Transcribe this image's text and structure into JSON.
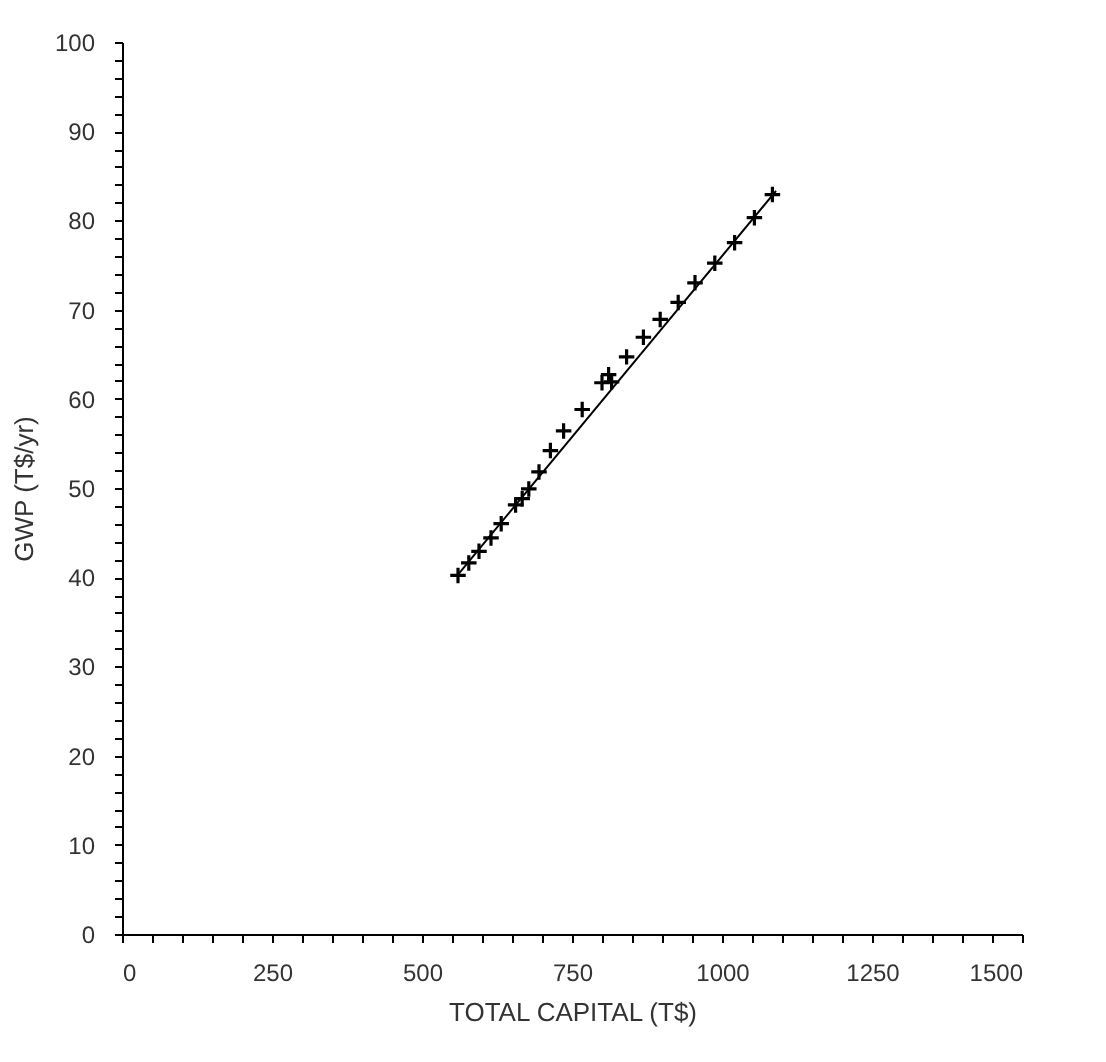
{
  "chart_data": {
    "type": "scatter",
    "xlabel": "TOTAL CAPITAL (T$)",
    "ylabel": "GWP (T$/yr)",
    "xlim": [
      0,
      1500
    ],
    "ylim": [
      0,
      100
    ],
    "xticks": [
      0,
      {
        "value": 50,
        "label": null
      },
      {
        "value": 100,
        "label": null
      },
      {
        "value": 150,
        "label": null
      },
      {
        "value": 200,
        "label": null
      },
      250,
      {
        "value": 300,
        "label": null
      },
      {
        "value": 350,
        "label": null
      },
      {
        "value": 400,
        "label": null
      },
      {
        "value": 450,
        "label": null
      },
      500,
      {
        "value": 550,
        "label": null
      },
      {
        "value": 600,
        "label": null
      },
      {
        "value": 650,
        "label": null
      },
      {
        "value": 700,
        "label": null
      },
      750,
      {
        "value": 800,
        "label": null
      },
      {
        "value": 850,
        "label": null
      },
      {
        "value": 900,
        "label": null
      },
      {
        "value": 950,
        "label": null
      },
      1000,
      {
        "value": 1050,
        "label": null
      },
      {
        "value": 1100,
        "label": null
      },
      {
        "value": 1150,
        "label": null
      },
      {
        "value": 1200,
        "label": null
      },
      1250,
      {
        "value": 1300,
        "label": null
      },
      {
        "value": 1350,
        "label": null
      },
      {
        "value": 1400,
        "label": null
      },
      {
        "value": 1450,
        "label": null
      },
      1500
    ],
    "yticks": [
      0,
      {
        "value": 2,
        "label": null
      },
      {
        "value": 4,
        "label": null
      },
      {
        "value": 6,
        "label": null
      },
      {
        "value": 8,
        "label": null
      },
      10,
      {
        "value": 12,
        "label": null
      },
      {
        "value": 14,
        "label": null
      },
      {
        "value": 16,
        "label": null
      },
      {
        "value": 18,
        "label": null
      },
      20,
      {
        "value": 22,
        "label": null
      },
      {
        "value": 24,
        "label": null
      },
      {
        "value": 26,
        "label": null
      },
      {
        "value": 28,
        "label": null
      },
      30,
      {
        "value": 32,
        "label": null
      },
      {
        "value": 34,
        "label": null
      },
      {
        "value": 36,
        "label": null
      },
      {
        "value": 38,
        "label": null
      },
      40,
      {
        "value": 42,
        "label": null
      },
      {
        "value": 44,
        "label": null
      },
      {
        "value": 46,
        "label": null
      },
      {
        "value": 48,
        "label": null
      },
      50,
      {
        "value": 52,
        "label": null
      },
      {
        "value": 54,
        "label": null
      },
      {
        "value": 56,
        "label": null
      },
      {
        "value": 58,
        "label": null
      },
      60,
      {
        "value": 62,
        "label": null
      },
      {
        "value": 64,
        "label": null
      },
      {
        "value": 66,
        "label": null
      },
      {
        "value": 68,
        "label": null
      },
      70,
      {
        "value": 72,
        "label": null
      },
      {
        "value": 74,
        "label": null
      },
      {
        "value": 76,
        "label": null
      },
      {
        "value": 78,
        "label": null
      },
      80,
      {
        "value": 82,
        "label": null
      },
      {
        "value": 84,
        "label": null
      },
      {
        "value": 86,
        "label": null
      },
      {
        "value": 88,
        "label": null
      },
      90,
      {
        "value": 92,
        "label": null
      },
      {
        "value": 94,
        "label": null
      },
      {
        "value": 96,
        "label": null
      },
      {
        "value": 98,
        "label": null
      },
      100
    ],
    "grid": false,
    "series": [
      {
        "type": "scatter",
        "marker": "cross",
        "color": "#000000",
        "x": [
          560,
          578,
          595,
          615,
          632,
          656,
          667,
          678,
          695,
          714,
          736,
          767,
          800,
          811,
          816,
          841,
          869,
          897,
          927,
          955,
          988,
          1021,
          1054,
          1084
        ],
        "values": [
          40.2,
          41.6,
          42.9,
          44.4,
          46.0,
          48.1,
          48.8,
          49.9,
          51.8,
          54.2,
          56.4,
          58.8,
          61.8,
          62.7,
          61.9,
          64.7,
          66.9,
          68.9,
          70.8,
          73.0,
          75.2,
          77.5,
          80.3,
          82.9
        ]
      },
      {
        "type": "line",
        "line_style": "solid",
        "color": "#000000",
        "x": [
          560,
          1090
        ],
        "values": [
          40.3,
          83.3
        ]
      }
    ]
  }
}
